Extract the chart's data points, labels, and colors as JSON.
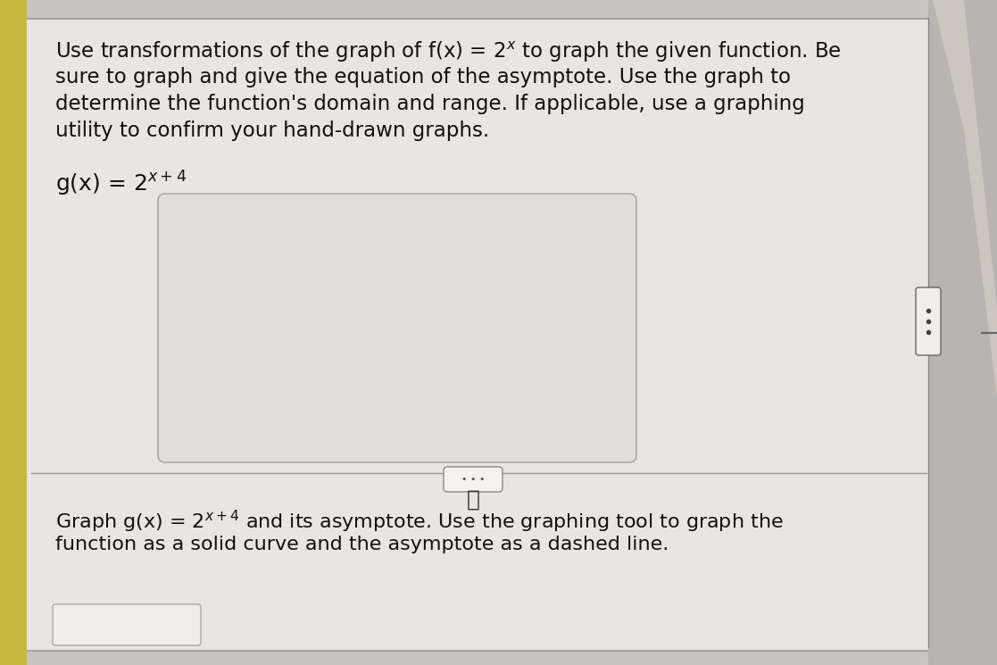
{
  "bg_color": "#c8c4c0",
  "panel_color": "#e8e5e2",
  "inner_box_color": "#e0ddd8",
  "text_color": "#111111",
  "left_bar_color": "#c8b840",
  "right_divider_color": "#888888",
  "handle_bg": "#f0eeec",
  "font_size_main": 16.5,
  "font_size_function": 18,
  "font_size_bottom": 16.0,
  "main_text_line1": "Use transformations of the graph of f(x) = 2",
  "main_text_line1_sup": "x",
  "main_text_rest": " to graph the given function. Be\nsure to graph and give the equation of the asymptote. Use the graph to\ndetermine the function's domain and range. If applicable, use a graphing\nutility to confirm your hand-drawn graphs.",
  "function_label": "g(x) = 2",
  "function_sup": "x+4",
  "bottom_line1a": "Graph g(x) = 2",
  "bottom_line1_sup": "x+4",
  "bottom_line1b": " and its asymptote. Use the graphing tool to graph the",
  "bottom_line2": "function as a solid curve and the asymptote as a dashed line."
}
